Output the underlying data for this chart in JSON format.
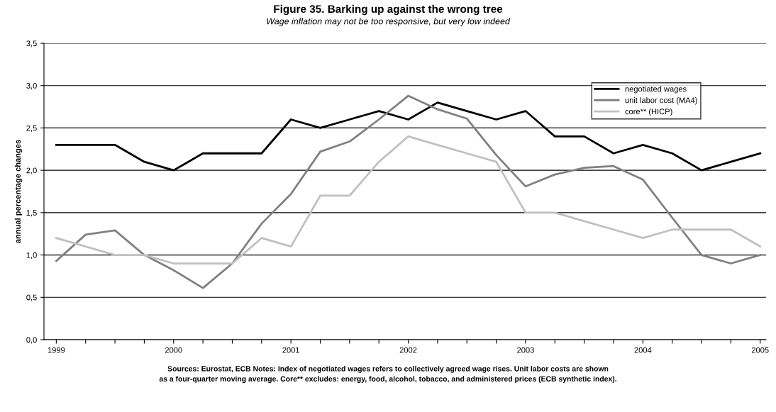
{
  "chart_data": {
    "type": "line",
    "title": "Figure 35. Barking up against the wrong tree",
    "subtitle": "Wage inflation may not be too responsive, but very low indeed",
    "ylabel": "annual percentage changes",
    "categories": [
      "1999",
      null,
      null,
      null,
      "2000",
      null,
      null,
      null,
      "2001",
      null,
      null,
      null,
      "2002",
      null,
      null,
      null,
      "2003",
      null,
      null,
      null,
      "2004",
      null,
      null,
      null,
      "2005"
    ],
    "series": [
      {
        "name": "negotiated wages",
        "color": "#000000",
        "values": [
          2.3,
          2.3,
          2.3,
          2.1,
          2.0,
          2.2,
          2.2,
          2.2,
          2.6,
          2.5,
          2.6,
          2.7,
          2.6,
          2.8,
          2.7,
          2.6,
          2.7,
          2.4,
          2.4,
          2.2,
          2.3,
          2.2,
          2.0,
          2.1,
          2.2
        ]
      },
      {
        "name": "unit labor cost (MA4)",
        "color": "#808080",
        "values": [
          0.93,
          1.24,
          1.29,
          1.0,
          0.82,
          0.61,
          0.9,
          1.37,
          1.72,
          2.22,
          2.34,
          2.6,
          2.88,
          2.72,
          2.61,
          2.18,
          1.81,
          1.95,
          2.03,
          2.05,
          1.89,
          1.44,
          1.0,
          0.9,
          1.0
        ]
      },
      {
        "name": "core** (HICP)",
        "color": "#c0c0c0",
        "values": [
          1.2,
          1.1,
          1.0,
          1.0,
          0.9,
          0.9,
          0.9,
          1.2,
          1.1,
          1.7,
          1.7,
          2.1,
          2.4,
          2.3,
          2.2,
          2.1,
          1.5,
          1.5,
          1.4,
          1.3,
          1.2,
          1.3,
          1.3,
          1.3,
          1.1
        ]
      }
    ],
    "ylim": [
      0,
      3.5
    ],
    "yticks": [
      {
        "value": 0,
        "label": "0,0"
      },
      {
        "value": 0.5,
        "label": "0,5"
      },
      {
        "value": 1,
        "label": "1,0"
      },
      {
        "value": 1.5,
        "label": "1,5"
      },
      {
        "value": 2,
        "label": "2,0"
      },
      {
        "value": 2.5,
        "label": "2,5"
      },
      {
        "value": 3,
        "label": "3,0"
      },
      {
        "value": 3.5,
        "label": "3,5"
      }
    ],
    "grid": "y",
    "legend": "top right",
    "marker": "none",
    "line_style": "solid",
    "annotations": [
      "Sources: Eurostat, ECB Notes: Index of negotiated wages refers to collectively agreed wage rises. Unit labor costs are shown\nas a four-quarter moving average. Core** excludes: energy, food, alcohol, tobacco, and administered prices (ECB synthetic index)."
    ]
  }
}
